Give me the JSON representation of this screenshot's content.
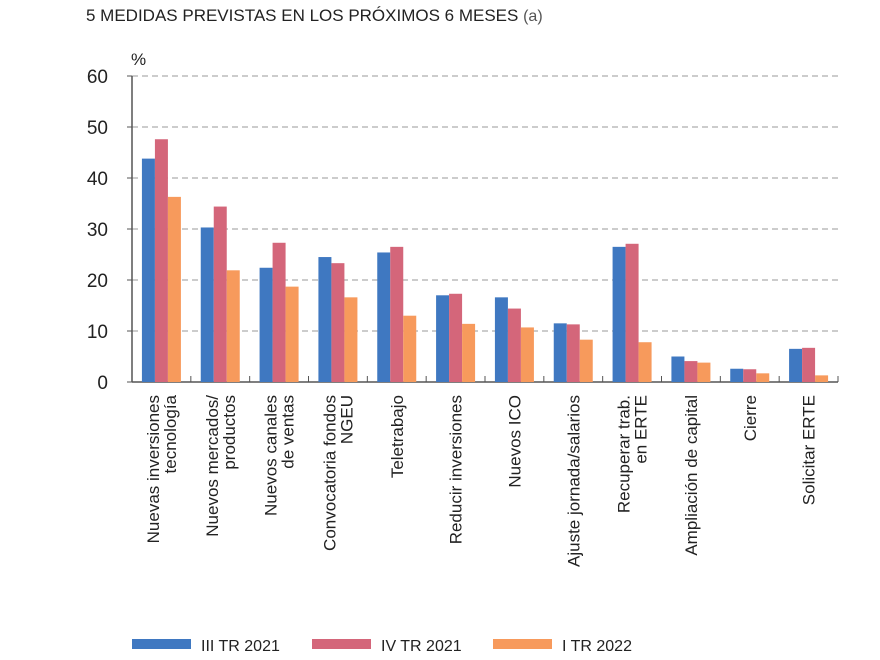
{
  "chart_data": {
    "type": "bar",
    "title": "5  MEDIDAS PREVISTAS EN LOS PRÓXIMOS 6 MESES",
    "title_note": "(a)",
    "ylabel": "%",
    "ylim": [
      0,
      60
    ],
    "yticks": [
      0,
      10,
      20,
      30,
      40,
      50,
      60
    ],
    "grid": true,
    "legend_placement": "bottom",
    "categories": [
      [
        "Nuevas inversiones",
        "tecnología"
      ],
      [
        "Nuevos mercados/",
        "productos"
      ],
      [
        "Nuevos canales",
        "de ventas"
      ],
      [
        "Convocatoria fondos",
        "NGEU"
      ],
      [
        "Teletrabajo"
      ],
      [
        "Reducir inversiones"
      ],
      [
        "Nuevos ICO"
      ],
      [
        "Ajuste jornada/salarios"
      ],
      [
        "Recuperar trab.",
        "en ERTE"
      ],
      [
        "Ampliación de capital"
      ],
      [
        "Cierre"
      ],
      [
        "Solicitar ERTE"
      ]
    ],
    "series": [
      {
        "name": "III TR 2021",
        "color": "#3f78c1",
        "values": [
          43.8,
          30.3,
          22.4,
          24.5,
          25.4,
          17.0,
          16.6,
          11.5,
          26.5,
          5.0,
          2.6,
          6.5
        ]
      },
      {
        "name": "IV TR 2021",
        "color": "#d4667a",
        "values": [
          47.6,
          34.4,
          27.3,
          23.3,
          26.5,
          17.3,
          14.4,
          11.3,
          27.1,
          4.1,
          2.5,
          6.7
        ]
      },
      {
        "name": "I TR 2022",
        "color": "#f79a5c",
        "values": [
          36.3,
          21.9,
          18.7,
          16.6,
          13.0,
          11.4,
          10.7,
          8.3,
          7.8,
          3.8,
          1.7,
          1.3
        ]
      }
    ]
  }
}
